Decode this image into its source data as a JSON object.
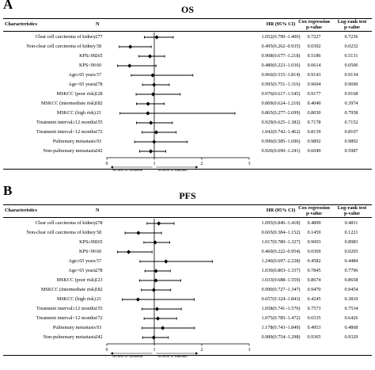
{
  "headers": {
    "characteristics": "Characteristics",
    "n": "N",
    "hr": "HR (95% CI)",
    "cox": [
      "Cox regression",
      "p-value"
    ],
    "logrank": [
      "Log-rank test",
      "p-value"
    ]
  },
  "favours": {
    "left": "In favor of sorafenib",
    "right": "In favor of sunitinib"
  },
  "chart_data": [
    {
      "panel": "A",
      "title": "OS",
      "type": "forest",
      "xlim": [
        0,
        3
      ],
      "xticks": [
        "0",
        "1",
        "2",
        "3"
      ],
      "reference_line": 1,
      "rows": [
        {
          "label": "Clear cell carcinoma of kidney",
          "n": "277",
          "hr": 1.052,
          "lo": 0.79,
          "hi": 1.4,
          "hr_text": "1.052(0.790–1.400)",
          "cox_p": "0.7227",
          "logrank_p": "0.7236"
        },
        {
          "label": "Non-clear cell carcinoma of kidney",
          "n": "58",
          "hr": 0.495,
          "lo": 0.262,
          "hi": 0.935,
          "hr_text": "0.495(0.262–0.935)",
          "cox_p": "0.0302",
          "logrank_p": "0.0232"
        },
        {
          "label": "KPS≥90",
          "n": "265",
          "hr": 0.908,
          "lo": 0.677,
          "hi": 1.218,
          "hr_text": "0.908(0.677–1.218)",
          "cox_p": "0.5186",
          "logrank_p": "0.5131"
        },
        {
          "label": "KPS<90",
          "n": "60",
          "hr": 0.48,
          "lo": 0.223,
          "hi": 1.036,
          "hr_text": "0.480(0.223–1.036)",
          "cox_p": "0.0614",
          "logrank_p": "0.0506"
        },
        {
          "label": "Age≥65 years",
          "n": "57",
          "hr": 0.966,
          "lo": 0.515,
          "hi": 1.814,
          "hr_text": "0.966(0.515–1.814)",
          "cox_p": "0.9143",
          "logrank_p": "0.9134"
        },
        {
          "label": "Age<65 years",
          "n": "278",
          "hr": 0.995,
          "lo": 0.751,
          "hi": 1.316,
          "hr_text": "0.995(0.751–1.316)",
          "cox_p": "0.9694",
          "logrank_p": "0.9690"
        },
        {
          "label": "MSKCC (poor risk)",
          "n": "128",
          "hr": 0.976,
          "lo": 0.617,
          "hi": 1.545,
          "hr_text": "0.976(0.617–1.545)",
          "cox_p": "0.9177",
          "logrank_p": "0.9168"
        },
        {
          "label": "MSKCC (intermediate risk)",
          "n": "182",
          "hr": 0.869,
          "lo": 0.624,
          "hi": 1.21,
          "hr_text": "0.869(0.624–1.210)",
          "cox_p": "0.4049",
          "logrank_p": "0.3974"
        },
        {
          "label": "MSKCC (high risk)",
          "n": "21",
          "hr": 0.865,
          "lo": 0.277,
          "hi": 2.699,
          "hr_text": "0.865(0.277–2.699)",
          "cox_p": "0.8030",
          "logrank_p": "0.7958"
        },
        {
          "label": "Treatment interval≥12 months",
          "n": "155",
          "hr": 0.929,
          "lo": 0.625,
          "hi": 1.382,
          "hr_text": "0.929(0.625–1.382)",
          "cox_p": "0.7178",
          "logrank_p": "0.7152"
        },
        {
          "label": "Treatment interval<12 months",
          "n": "172",
          "hr": 1.042,
          "lo": 0.742,
          "hi": 1.462,
          "hr_text": "1.042(0.742–1.462)",
          "cox_p": "0.8139",
          "logrank_p": "0.8107"
        },
        {
          "label": "Pulmonary metastasis",
          "n": "93",
          "hr": 0.996,
          "lo": 0.585,
          "hi": 1.696,
          "hr_text": "0.996(0.585–1.696)",
          "cox_p": "0.9892",
          "logrank_p": "0.9892"
        },
        {
          "label": "Non-pulmonary metastasis",
          "n": "242",
          "hr": 0.926,
          "lo": 0.69,
          "hi": 1.241,
          "hr_text": "0.926(0.690–1.241)",
          "cox_p": "0.6049",
          "logrank_p": "0.5987"
        }
      ]
    },
    {
      "panel": "B",
      "title": "PFS",
      "type": "forest",
      "xlim": [
        0,
        3
      ],
      "xticks": [
        "0",
        "1",
        "2",
        "3"
      ],
      "reference_line": 1,
      "rows": [
        {
          "label": "Clear cell carcinoma of kidney",
          "n": "278",
          "hr": 1.095,
          "lo": 0.846,
          "hi": 1.418,
          "hr_text": "1.095(0.846–1.418)",
          "cox_p": "0.4899",
          "logrank_p": "0.4811"
        },
        {
          "label": "Non-clear cell carcinoma of kidney",
          "n": "58",
          "hr": 0.665,
          "lo": 0.384,
          "hi": 1.152,
          "hr_text": "0.665(0.384–1.152)",
          "cox_p": "0.1459",
          "logrank_p": "0.1221"
        },
        {
          "label": "KPS≥90",
          "n": "265",
          "hr": 1.017,
          "lo": 0.78,
          "hi": 1.327,
          "hr_text": "1.017(0.780–1.327)",
          "cox_p": "0.9003",
          "logrank_p": "0.8983"
        },
        {
          "label": "KPS<90",
          "n": "60",
          "hr": 0.46,
          "lo": 0.222,
          "hi": 0.954,
          "hr_text": "0.460(0.222–0.954)",
          "cox_p": "0.0369",
          "logrank_p": "0.0265"
        },
        {
          "label": "Age≥65 years",
          "n": "57",
          "hr": 1.246,
          "lo": 0.697,
          "hi": 2.228,
          "hr_text": "1.246(0.697–2.228)",
          "cox_p": "0.4582",
          "logrank_p": "0.4484"
        },
        {
          "label": "Age<65 years",
          "n": "278",
          "hr": 1.036,
          "lo": 0.803,
          "hi": 1.337,
          "hr_text": "1.036(0.803–1.337)",
          "cox_p": "0.7845",
          "logrank_p": "0.7796"
        },
        {
          "label": "MSKCC (poor risk)",
          "n": "123",
          "hr": 1.033,
          "lo": 0.688,
          "hi": 1.559,
          "hr_text": "1.033(0.688–1.559)",
          "cox_p": "0.8674",
          "logrank_p": "0.8658"
        },
        {
          "label": "MSKCC (intermediate risk)",
          "n": "182",
          "hr": 0.99,
          "lo": 0.727,
          "hi": 1.347,
          "hr_text": "0.990(0.727–1.347)",
          "cox_p": "0.9470",
          "logrank_p": "0.9454"
        },
        {
          "label": "MSKCC (high risk)",
          "n": "21",
          "hr": 0.657,
          "lo": 0.324,
          "hi": 1.843,
          "hr_text": "0.657(0.324–1.843)",
          "cox_p": "0.4245",
          "logrank_p": "0.3810"
        },
        {
          "label": "Treatment interval≥12 months",
          "n": "155",
          "hr": 1.058,
          "lo": 0.741,
          "hi": 1.57,
          "hr_text": "1.058(0.741–1.570)",
          "cox_p": "0.7573",
          "logrank_p": "0.7534"
        },
        {
          "label": "Treatment interval<12 months",
          "n": "172",
          "hr": 1.075,
          "lo": 0.785,
          "hi": 1.472,
          "hr_text": "1.075(0.785–1.472)",
          "cox_p": "0.6535",
          "logrank_p": "0.6426"
        },
        {
          "label": "Pulmonary metastasis",
          "n": "93",
          "hr": 1.178,
          "lo": 0.743,
          "hi": 1.849,
          "hr_text": "1.178(0.743–1.849)",
          "cox_p": "0.4953",
          "logrank_p": "0.4868"
        },
        {
          "label": "Non-pulmonary metastasis",
          "n": "242",
          "hr": 0.989,
          "lo": 0.754,
          "hi": 1.298,
          "hr_text": "0.989(0.754–1.298)",
          "cox_p": "0.9365",
          "logrank_p": "0.9329"
        }
      ]
    }
  ]
}
